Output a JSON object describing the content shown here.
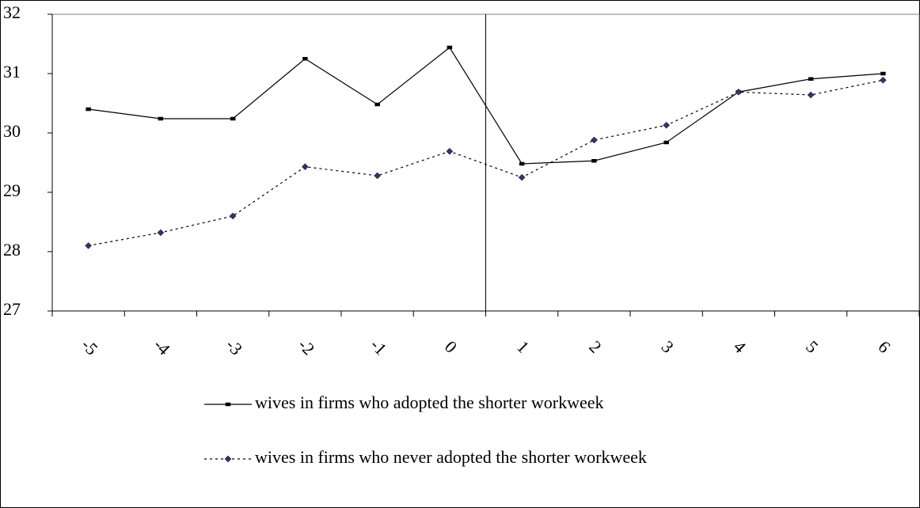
{
  "chart_data": {
    "type": "line",
    "categories": [
      "-5",
      "-4",
      "-3",
      "-2",
      "-1",
      "0",
      "1",
      "2",
      "3",
      "4",
      "5",
      "6"
    ],
    "series": [
      {
        "name": "wives in firms who adopted the shorter workweek",
        "color": "#000000",
        "values": [
          30.4,
          30.24,
          30.24,
          31.25,
          30.48,
          31.44,
          29.48,
          29.53,
          29.84,
          30.69,
          30.91,
          31.0
        ]
      },
      {
        "name": "wives in firms who never adopted the shorter workweek",
        "color": "#333366",
        "values": [
          28.1,
          28.32,
          28.6,
          29.43,
          29.28,
          29.69,
          29.25,
          29.88,
          30.13,
          30.69,
          30.64,
          30.89
        ]
      }
    ],
    "ylim": [
      27,
      32
    ],
    "yticks": [
      27,
      28,
      29,
      30,
      31,
      32
    ],
    "grid": false
  }
}
